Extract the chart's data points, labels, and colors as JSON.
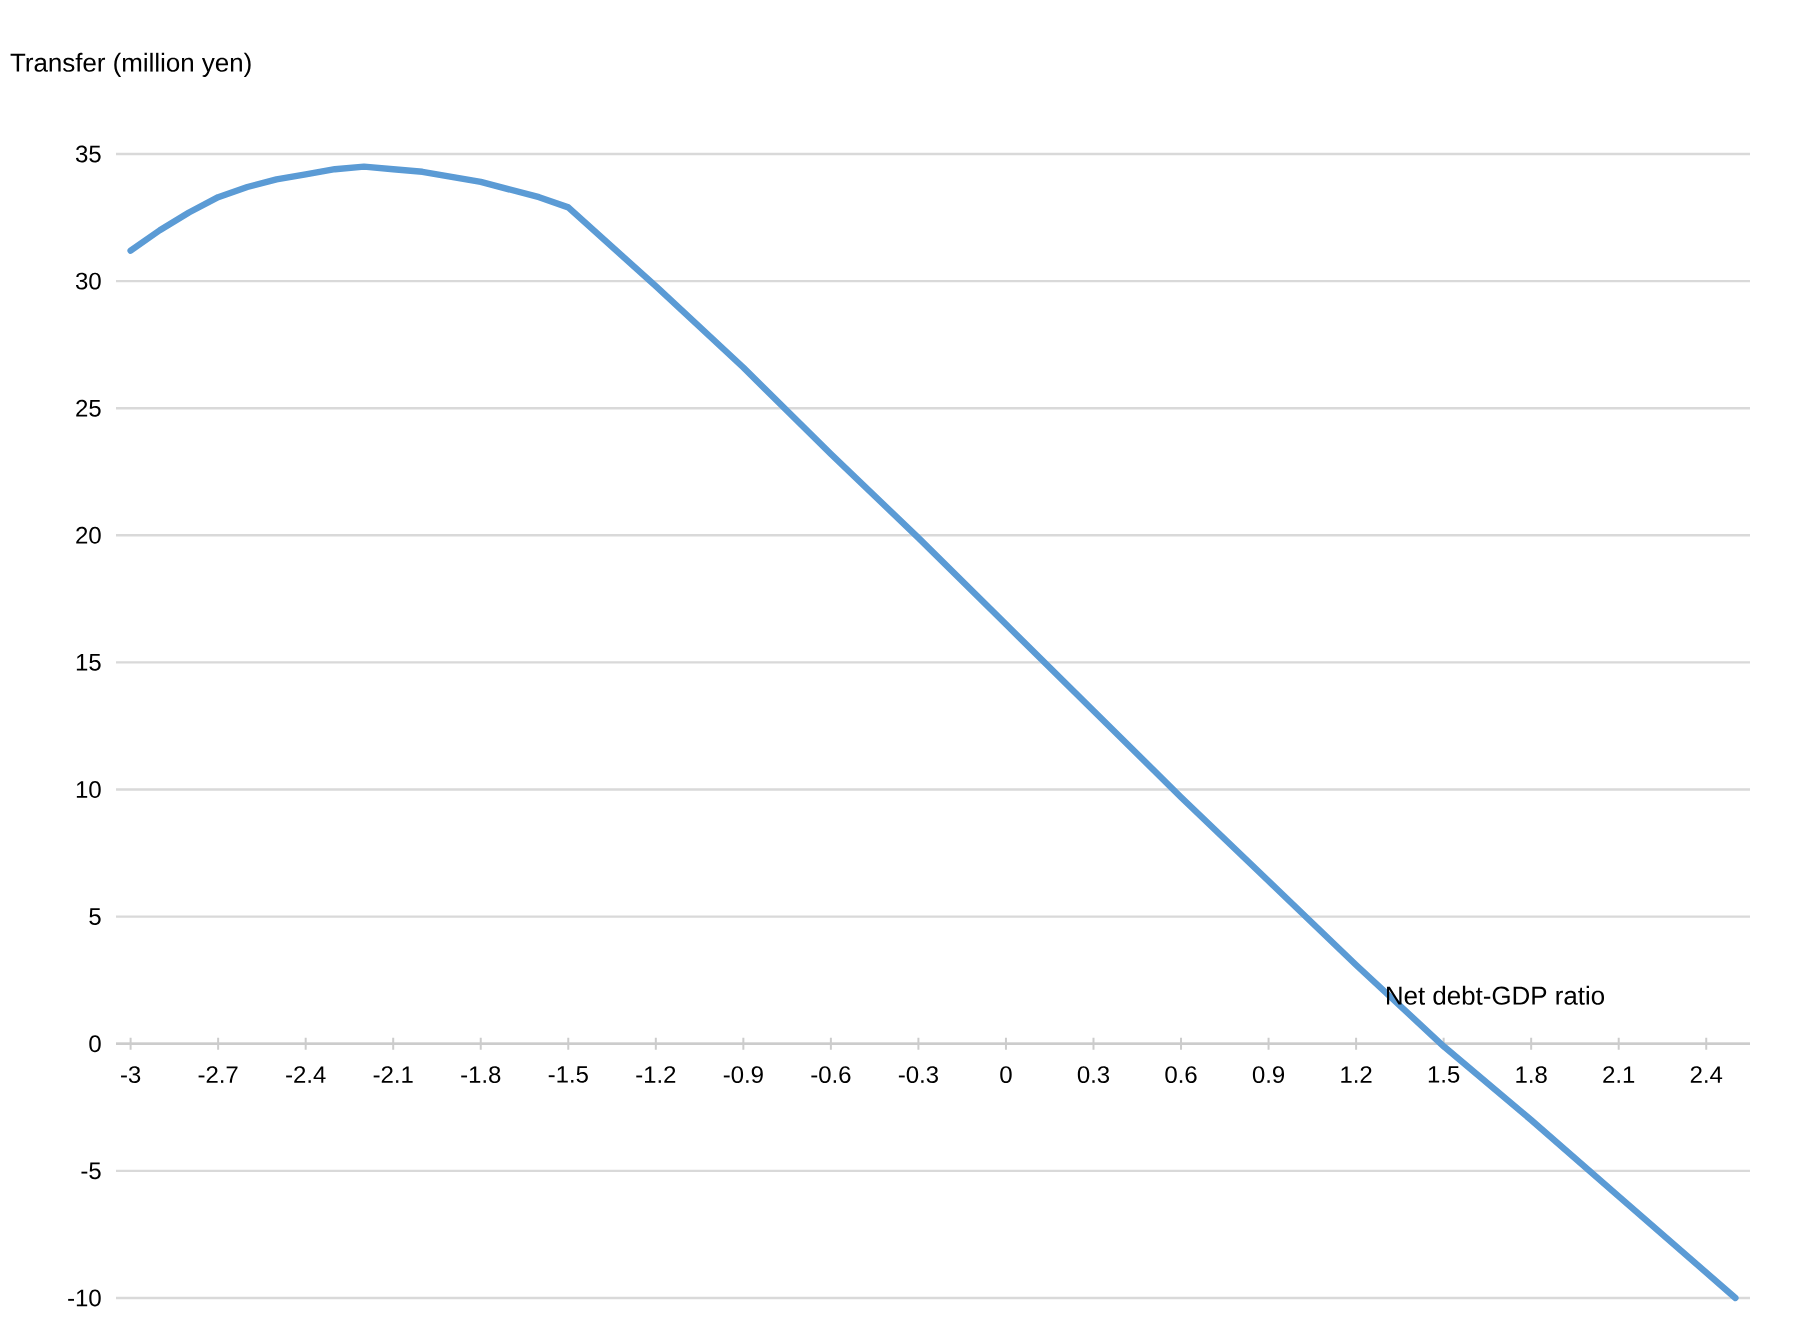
{
  "chart_data": {
    "type": "line",
    "ylabel": "Transfer (million yen)",
    "xlabel": "Net debt-GDP ratio",
    "x": [
      -3,
      -2.9,
      -2.8,
      -2.7,
      -2.6,
      -2.5,
      -2.4,
      -2.3,
      -2.2,
      -2.1,
      -2.0,
      -1.9,
      -1.8,
      -1.7,
      -1.6,
      -1.5,
      -1.2,
      -0.9,
      -0.6,
      -0.3,
      0,
      0.3,
      0.6,
      0.9,
      1.2,
      1.5,
      1.8,
      2.1,
      2.5
    ],
    "series": [
      {
        "color": "#5b9bd5",
        "values": [
          31.2,
          32.0,
          32.7,
          33.3,
          33.7,
          34.0,
          34.2,
          34.4,
          34.5,
          34.4,
          34.3,
          34.1,
          33.9,
          33.6,
          33.3,
          32.9,
          29.8,
          26.6,
          23.2,
          19.9,
          16.5,
          13.1,
          9.7,
          6.4,
          3.1,
          -0.1,
          -3.0,
          -6.0,
          -10
        ]
      }
    ],
    "xlim": [
      -3.05,
      2.55
    ],
    "xticks": [
      -3,
      -2.7,
      -2.4,
      -2.1,
      -1.8,
      -1.5,
      -1.2,
      -0.9,
      -0.6,
      -0.3,
      0,
      0.3,
      0.6,
      0.9,
      1.2,
      1.5,
      1.8,
      2.1,
      2.4
    ],
    "ylim": [
      -10,
      35
    ],
    "yticks": [
      -10,
      -5,
      0,
      5,
      10,
      15,
      20,
      25,
      30,
      35
    ],
    "grid": "y",
    "marker": "none",
    "line_style": "solid"
  }
}
